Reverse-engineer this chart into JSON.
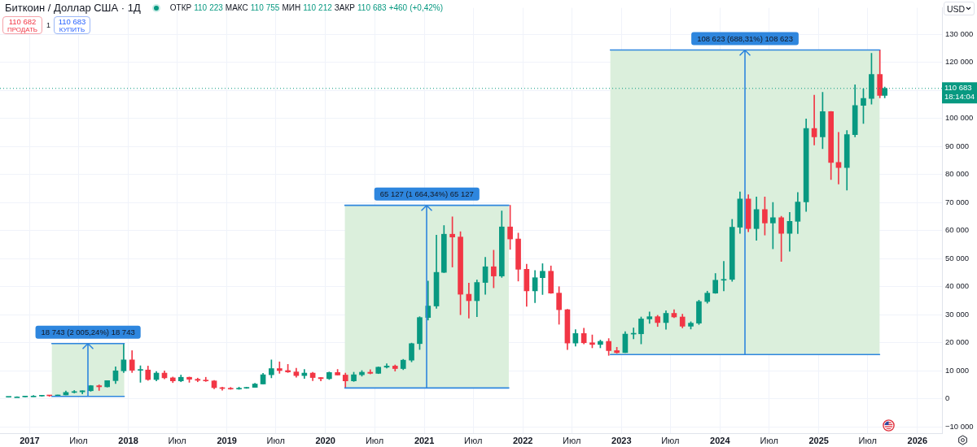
{
  "chart_data": {
    "type": "candlestick",
    "title": "Биткоин / Доллар США · 1Д",
    "subtitle": "ОТКР 110 223 МАКС 110 755 МИН 110 212 ЗАКР 110 683 +460 (+0,42%)",
    "ylabel": "USD",
    "annotations": [
      "110 682",
      "ПРОДАТЬ",
      "1",
      "110 683",
      "КУПИТЬ"
    ],
    "x": [
      "2016-10-15",
      "2016-11-15",
      "2016-12-15",
      "2017-01-15",
      "2017-02-15",
      "2017-03-15",
      "2017-04-15",
      "2017-05-15",
      "2017-06-15",
      "2017-07-15",
      "2017-08-15",
      "2017-09-15",
      "2017-10-15",
      "2017-11-15",
      "2017-12-15",
      "2018-01-15",
      "2018-02-15",
      "2018-03-15",
      "2018-04-15",
      "2018-05-15",
      "2018-06-15",
      "2018-07-15",
      "2018-08-15",
      "2018-09-15",
      "2018-10-15",
      "2018-11-15",
      "2018-12-15",
      "2019-01-15",
      "2019-02-15",
      "2019-03-15",
      "2019-04-15",
      "2019-05-15",
      "2019-06-15",
      "2019-07-15",
      "2019-08-15",
      "2019-09-15",
      "2019-10-15",
      "2019-11-15",
      "2019-12-15",
      "2020-01-15",
      "2020-02-15",
      "2020-03-15",
      "2020-04-15",
      "2020-05-15",
      "2020-06-15",
      "2020-07-15",
      "2020-08-15",
      "2020-09-15",
      "2020-10-15",
      "2020-11-15",
      "2020-12-15",
      "2021-01-15",
      "2021-02-15",
      "2021-03-15",
      "2021-04-15",
      "2021-05-15",
      "2021-06-15",
      "2021-07-15",
      "2021-08-15",
      "2021-09-15",
      "2021-10-15",
      "2021-11-15",
      "2021-12-15",
      "2022-01-15",
      "2022-02-15",
      "2022-03-15",
      "2022-04-15",
      "2022-05-15",
      "2022-06-15",
      "2022-07-15",
      "2022-08-15",
      "2022-09-15",
      "2022-10-15",
      "2022-11-15",
      "2022-12-15",
      "2023-01-15",
      "2023-02-15",
      "2023-03-15",
      "2023-04-15",
      "2023-05-15",
      "2023-06-15",
      "2023-07-15",
      "2023-08-15",
      "2023-09-15",
      "2023-10-15",
      "2023-11-15",
      "2023-12-15",
      "2024-01-15",
      "2024-02-15",
      "2024-03-15",
      "2024-04-15",
      "2024-05-15",
      "2024-06-15",
      "2024-07-15",
      "2024-08-15",
      "2024-09-15",
      "2024-10-15",
      "2024-11-15",
      "2024-12-15",
      "2025-01-15",
      "2025-02-15",
      "2025-03-15",
      "2025-04-15",
      "2025-05-15",
      "2025-06-15",
      "2025-07-15",
      "2025-08-15",
      "2025-09-02"
    ],
    "ohlc": [
      [
        600,
        700,
        600,
        700
      ],
      [
        700,
        800,
        700,
        700
      ],
      [
        700,
        1000,
        700,
        1000
      ],
      [
        1000,
        1200,
        800,
        1000
      ],
      [
        1000,
        1200,
        900,
        1200
      ],
      [
        1200,
        1300,
        900,
        1100
      ],
      [
        1100,
        1400,
        1100,
        1400
      ],
      [
        1400,
        2800,
        1400,
        2300
      ],
      [
        2300,
        3000,
        2100,
        2500
      ],
      [
        2500,
        2900,
        1800,
        2900
      ],
      [
        2900,
        4800,
        2700,
        4700
      ],
      [
        4700,
        5000,
        3000,
        4300
      ],
      [
        4300,
        6500,
        4200,
        6500
      ],
      [
        6500,
        11400,
        5500,
        10000
      ],
      [
        10000,
        19700,
        9400,
        13900
      ],
      [
        13900,
        17200,
        9400,
        10200
      ],
      [
        10200,
        11800,
        5900,
        10300
      ],
      [
        10300,
        11700,
        6600,
        6900
      ],
      [
        6900,
        9800,
        6400,
        9200
      ],
      [
        9200,
        10000,
        7100,
        7500
      ],
      [
        7500,
        7800,
        5800,
        6400
      ],
      [
        6400,
        8500,
        6100,
        7700
      ],
      [
        7700,
        7800,
        5900,
        7000
      ],
      [
        7000,
        7400,
        6100,
        6600
      ],
      [
        6600,
        7700,
        6200,
        6400
      ],
      [
        6400,
        6600,
        3600,
        4000
      ],
      [
        4000,
        4200,
        3100,
        3700
      ],
      [
        3700,
        4100,
        3400,
        3500
      ],
      [
        3500,
        4200,
        3400,
        3800
      ],
      [
        3800,
        4100,
        3700,
        4100
      ],
      [
        4100,
        5600,
        4100,
        5300
      ],
      [
        5300,
        9100,
        5300,
        8600
      ],
      [
        8600,
        13900,
        7500,
        10800
      ],
      [
        10800,
        13200,
        9100,
        10100
      ],
      [
        10100,
        12300,
        9400,
        9600
      ],
      [
        9600,
        10900,
        7700,
        8300
      ],
      [
        8300,
        10500,
        7300,
        9200
      ],
      [
        9200,
        9500,
        6500,
        7600
      ],
      [
        7600,
        7700,
        6400,
        7200
      ],
      [
        7200,
        9600,
        6900,
        9400
      ],
      [
        9400,
        10500,
        8500,
        8500
      ],
      [
        8500,
        9200,
        3900,
        6400
      ],
      [
        6400,
        9500,
        6200,
        8600
      ],
      [
        8600,
        10100,
        8100,
        9500
      ],
      [
        9500,
        10400,
        8900,
        9100
      ],
      [
        9100,
        11400,
        9000,
        11300
      ],
      [
        11300,
        12500,
        11000,
        11700
      ],
      [
        11700,
        12100,
        9900,
        10800
      ],
      [
        10800,
        14100,
        10400,
        13800
      ],
      [
        13800,
        19900,
        13200,
        19700
      ],
      [
        19700,
        29300,
        17600,
        29000
      ],
      [
        29000,
        42000,
        28100,
        33100
      ],
      [
        33100,
        58400,
        32300,
        45100
      ],
      [
        45100,
        61800,
        45000,
        58700
      ],
      [
        58700,
        64900,
        47000,
        57700
      ],
      [
        57700,
        59600,
        30000,
        37300
      ],
      [
        37300,
        41300,
        28800,
        35000
      ],
      [
        35000,
        42400,
        29300,
        41500
      ],
      [
        41500,
        50500,
        37300,
        47100
      ],
      [
        47100,
        53000,
        39600,
        43800
      ],
      [
        43800,
        67000,
        43300,
        61300
      ],
      [
        61300,
        69000,
        53300,
        57000
      ],
      [
        57000,
        59100,
        42000,
        46200
      ],
      [
        46200,
        48000,
        33000,
        38500
      ],
      [
        38500,
        45800,
        34300,
        43200
      ],
      [
        43200,
        48200,
        37200,
        45500
      ],
      [
        45500,
        47400,
        37600,
        37700
      ],
      [
        37700,
        40000,
        26600,
        31800
      ],
      [
        31800,
        31900,
        17600,
        19900
      ],
      [
        19900,
        24700,
        18800,
        23300
      ],
      [
        23300,
        25200,
        19600,
        20000
      ],
      [
        20000,
        22800,
        18200,
        19400
      ],
      [
        19400,
        21000,
        18200,
        20500
      ],
      [
        20500,
        21500,
        15500,
        17200
      ],
      [
        17200,
        18400,
        16300,
        16500
      ],
      [
        16500,
        24000,
        16500,
        23100
      ],
      [
        23100,
        25300,
        21400,
        23200
      ],
      [
        23200,
        29200,
        19600,
        28500
      ],
      [
        28500,
        31000,
        26900,
        29300
      ],
      [
        29300,
        29800,
        25800,
        27200
      ],
      [
        27200,
        31400,
        24800,
        30500
      ],
      [
        30500,
        31800,
        28900,
        29200
      ],
      [
        29200,
        30200,
        25300,
        25900
      ],
      [
        25900,
        27500,
        24900,
        27000
      ],
      [
        27000,
        35200,
        26500,
        34700
      ],
      [
        34700,
        38400,
        34100,
        37700
      ],
      [
        37700,
        44700,
        37600,
        42300
      ],
      [
        42300,
        49000,
        38500,
        42600
      ],
      [
        42600,
        64000,
        41900,
        61200
      ],
      [
        61200,
        73800,
        59000,
        71300
      ],
      [
        71300,
        72800,
        59600,
        60700
      ],
      [
        60700,
        72000,
        56500,
        67500
      ],
      [
        67500,
        72000,
        58400,
        62700
      ],
      [
        62700,
        70000,
        53500,
        64600
      ],
      [
        64600,
        65100,
        49000,
        59000
      ],
      [
        59000,
        66500,
        52600,
        63300
      ],
      [
        63300,
        73600,
        58900,
        70200
      ],
      [
        70200,
        99800,
        66800,
        96400
      ],
      [
        96400,
        108300,
        90500,
        93400
      ],
      [
        93400,
        109300,
        89200,
        102400
      ],
      [
        102400,
        102500,
        78200,
        84300
      ],
      [
        84300,
        95000,
        76600,
        82500
      ],
      [
        82500,
        95700,
        74400,
        94200
      ],
      [
        94200,
        112000,
        93400,
        104600
      ],
      [
        104600,
        110500,
        98200,
        107100
      ],
      [
        107100,
        123200,
        105100,
        115700
      ],
      [
        115700,
        124400,
        107300,
        108200
      ],
      [
        108200,
        111200,
        107300,
        110700
      ]
    ],
    "colors": [
      "#089981",
      "#089981",
      "#089981",
      "#089981",
      "#089981",
      "#f23645",
      "#089981",
      "#089981",
      "#089981",
      "#089981",
      "#089981",
      "#f23645",
      "#089981",
      "#089981",
      "#089981",
      "#f23645",
      "#089981",
      "#f23645",
      "#089981",
      "#f23645",
      "#f23645",
      "#089981",
      "#f23645",
      "#f23645",
      "#f23645",
      "#f23645",
      "#f23645",
      "#f23645",
      "#089981",
      "#089981",
      "#089981",
      "#089981",
      "#089981",
      "#f23645",
      "#f23645",
      "#f23645",
      "#089981",
      "#f23645",
      "#f23645",
      "#089981",
      "#f23645",
      "#f23645",
      "#089981",
      "#089981",
      "#f23645",
      "#089981",
      "#089981",
      "#f23645",
      "#089981",
      "#089981",
      "#089981",
      "#089981",
      "#089981",
      "#089981",
      "#f23645",
      "#f23645",
      "#f23645",
      "#089981",
      "#089981",
      "#f23645",
      "#089981",
      "#f23645",
      "#f23645",
      "#f23645",
      "#089981",
      "#089981",
      "#f23645",
      "#f23645",
      "#f23645",
      "#089981",
      "#f23645",
      "#f23645",
      "#089981",
      "#f23645",
      "#f23645",
      "#089981",
      "#089981",
      "#089981",
      "#089981",
      "#f23645",
      "#089981",
      "#f23645",
      "#f23645",
      "#089981",
      "#089981",
      "#089981",
      "#089981",
      "#089981",
      "#089981",
      "#089981",
      "#f23645",
      "#089981",
      "#f23645",
      "#089981",
      "#f23645",
      "#089981",
      "#089981",
      "#089981",
      "#f23645",
      "#089981",
      "#f23645",
      "#f23645",
      "#089981",
      "#089981",
      "#089981",
      "#089981",
      "#f23645",
      "#089981"
    ],
    "series": [
      {
        "type": "line",
        "color": "#2e86de",
        "x": [
          "2017-03-24",
          "2017-12-17"
        ],
        "values": [
          900,
          900
        ]
      },
      {
        "type": "line",
        "color": "#2e86de",
        "x": [
          "2017-03-24",
          "2017-12-17"
        ],
        "values": [
          19700,
          19700
        ]
      },
      {
        "type": "line",
        "color": "#2e86de",
        "x": [
          "2020-03-13",
          "2021-11-10"
        ],
        "values": [
          3900,
          3900
        ]
      },
      {
        "type": "line",
        "color": "#2e86de",
        "x": [
          "2020-03-13",
          "2021-11-10"
        ],
        "values": [
          69000,
          69000
        ]
      },
      {
        "type": "line",
        "color": "#2e86de",
        "x": [
          "2022-11-21",
          "2025-08-14"
        ],
        "values": [
          15800,
          15800
        ]
      },
      {
        "type": "line",
        "color": "#2e86de",
        "x": [
          "2022-11-21",
          "2025-08-14"
        ],
        "values": [
          124400,
          124400
        ]
      }
    ],
    "xlim": [
      "2016-09-13",
      "2026-04-02"
    ],
    "ylim": [
      -12230,
      139390
    ],
    "xticks": [
      "2017",
      {
        "value": "2017-07-01",
        "label": "Июл"
      },
      "2018",
      {
        "value": "2018-07-01",
        "label": "Июл"
      },
      "2019",
      {
        "value": "2019-07-01",
        "label": "Июл"
      },
      "2020",
      {
        "value": "2020-07-01",
        "label": "Июл"
      },
      "2021",
      {
        "value": "2021-07-01",
        "label": "Июл"
      },
      "2022",
      {
        "value": "2022-07-01",
        "label": "Июл"
      },
      "2023",
      {
        "value": "2023-07-01",
        "label": "Июл"
      },
      "2024",
      {
        "value": "2024-07-01",
        "label": "Июл"
      },
      "2025",
      {
        "value": "2025-07-01",
        "label": "Июл"
      },
      "2026"
    ],
    "yticks": [
      {
        "value": -10000,
        "label": "−10 000"
      },
      0,
      {
        "value": 10000,
        "label": "10 000"
      },
      {
        "value": 20000,
        "label": "20 000"
      },
      {
        "value": 30000,
        "label": "30 000"
      },
      {
        "value": 40000,
        "label": "40 000"
      },
      {
        "value": 50000,
        "label": "50 000"
      },
      {
        "value": 60000,
        "label": "60 000"
      },
      {
        "value": 70000,
        "label": "70 000"
      },
      {
        "value": 80000,
        "label": "80 000"
      },
      {
        "value": 90000,
        "label": "90 000"
      },
      {
        "value": 100000,
        "label": "100 000"
      },
      {
        "value": 110000,
        "label": null
      },
      {
        "value": 120000,
        "label": "120 000"
      },
      {
        "value": 130000,
        "label": "130 000"
      }
    ],
    "grid": true,
    "bands": [
      {
        "axis": "x",
        "from": "2017-03-24",
        "to": "2017-12-17",
        "label": "18 743 (2 005,24%) 18 743",
        "color": "#dbefdc"
      },
      {
        "axis": "x",
        "from": "2020-03-13",
        "to": "2021-11-10",
        "label": "65 127 (1 664,34%) 65 127",
        "color": "#dbefdc"
      },
      {
        "axis": "x",
        "from": "2022-11-21",
        "to": "2025-08-14",
        "label": "108 623 (688,31%) 108 623",
        "color": "#dbefdc"
      }
    ],
    "ref_lines": [
      {
        "axis": "y",
        "value": 110683,
        "label": "110 683\n18:14:04",
        "color": "#089981",
        "line_style": "dotted"
      }
    ]
  }
}
